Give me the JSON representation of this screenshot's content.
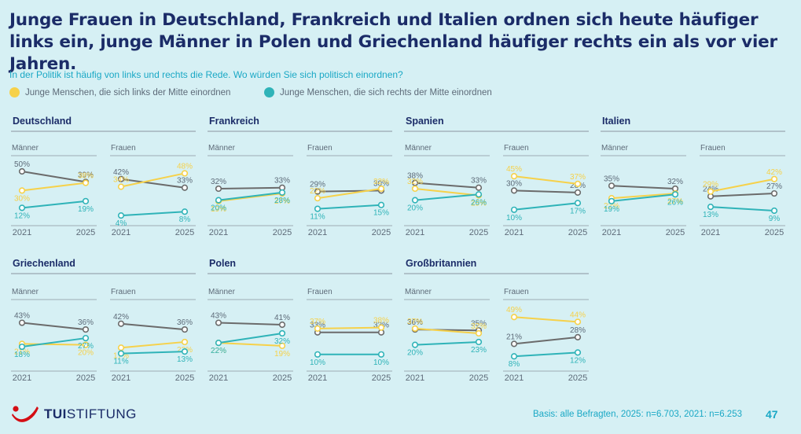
{
  "title": "Junge Frauen in Deutschland, Frankreich und Italien ordnen sich heute häufiger links ein, junge Männer in Polen und Griechenland häufiger rechts ein als vor vier Jahren.",
  "subtitle": "In der Politik ist häufig von links und rechts die Rede. Wo würden Sie sich politisch einordnen?",
  "legend": [
    {
      "label": "Junge Menschen, die sich links der Mitte einordnen",
      "color": "#f6d14a"
    },
    {
      "label": "Junge Menschen, die sich rechts der Mitte einordnen",
      "color": "#2fb3b8"
    }
  ],
  "colors": {
    "left": "#f6d14a",
    "right": "#2fb3b8",
    "grey": "#6b6b6b",
    "axis_text": "#5d6a78"
  },
  "footer": {
    "logo_brand": "TUI",
    "logo_suffix": "STIFTUNG",
    "logo_icon": "tui-smile-logo",
    "footnote": "Basis: alle Befragten, 2025: n=6.703, 2021: n=6.253",
    "page": "47"
  },
  "chart_data": [
    {
      "country": "Deutschland",
      "panels": [
        {
          "label": "Männer",
          "x": [
            "2021",
            "2025"
          ],
          "grey": [
            50,
            39
          ],
          "left": [
            30,
            38
          ],
          "right": [
            12,
            19
          ],
          "grey_labels": [
            "50%",
            "39%"
          ],
          "left_labels": [
            "30%",
            "38%"
          ],
          "right_labels": [
            "12%",
            "19%"
          ]
        },
        {
          "label": "Frauen",
          "x": [
            "2021",
            "2025"
          ],
          "grey": [
            42,
            33
          ],
          "left": [
            34,
            48
          ],
          "right": [
            4,
            8
          ],
          "grey_labels": [
            "42%",
            "33%"
          ],
          "left_labels": [
            "34%",
            "48%"
          ],
          "right_labels": [
            "4%",
            "8%"
          ]
        }
      ]
    },
    {
      "country": "Frankreich",
      "panels": [
        {
          "label": "Männer",
          "x": [
            "2021",
            "2025"
          ],
          "grey": [
            32,
            33
          ],
          "left": [
            19,
            27
          ],
          "right": [
            20,
            28
          ],
          "grey_labels": [
            "32%",
            "33%"
          ],
          "left_labels": [
            "19%",
            "27%"
          ],
          "right_labels": [
            "20%",
            "28%"
          ]
        },
        {
          "label": "Frauen",
          "x": [
            "2021",
            "2025"
          ],
          "grey": [
            29,
            30
          ],
          "left": [
            22,
            32
          ],
          "right": [
            11,
            15
          ],
          "grey_labels": [
            "29%",
            "30%"
          ],
          "left_labels": [
            "22%",
            "32%"
          ],
          "right_labels": [
            "11%",
            "15%"
          ]
        }
      ]
    },
    {
      "country": "Spanien",
      "panels": [
        {
          "label": "Männer",
          "x": [
            "2021",
            "2025"
          ],
          "grey": [
            38,
            33
          ],
          "left": [
            32,
            25
          ],
          "right": [
            20,
            26
          ],
          "grey_labels": [
            "38%",
            "33%"
          ],
          "left_labels": [
            "32%",
            "25%"
          ],
          "right_labels": [
            "20%",
            "26%"
          ]
        },
        {
          "label": "Frauen",
          "x": [
            "2021",
            "2025"
          ],
          "grey": [
            30,
            28
          ],
          "left": [
            45,
            37
          ],
          "right": [
            10,
            17
          ],
          "grey_labels": [
            "30%",
            "28%"
          ],
          "left_labels": [
            "45%",
            "37%"
          ],
          "right_labels": [
            "10%",
            "17%"
          ]
        }
      ]
    },
    {
      "country": "Italien",
      "panels": [
        {
          "label": "Männer",
          "x": [
            "2021",
            "2025"
          ],
          "grey": [
            35,
            32
          ],
          "left": [
            22,
            27
          ],
          "right": [
            19,
            26
          ],
          "grey_labels": [
            "35%",
            "32%"
          ],
          "left_labels": [
            "22%",
            "27%"
          ],
          "right_labels": [
            "19%",
            "26%"
          ]
        },
        {
          "label": "Frauen",
          "x": [
            "2021",
            "2025"
          ],
          "grey": [
            24,
            27
          ],
          "left": [
            29,
            42
          ],
          "right": [
            13,
            9
          ],
          "grey_labels": [
            "24%",
            "27%"
          ],
          "left_labels": [
            "29%",
            "42%"
          ],
          "right_labels": [
            "13%",
            "9%"
          ]
        }
      ]
    },
    {
      "country": "Griechenland",
      "panels": [
        {
          "label": "Männer",
          "x": [
            "2021",
            "2025"
          ],
          "grey": [
            43,
            36
          ],
          "left": [
            21,
            20
          ],
          "right": [
            18,
            27
          ],
          "grey_labels": [
            "43%",
            "36%"
          ],
          "left_labels": [
            "21%",
            "20%"
          ],
          "right_labels": [
            "18%",
            "27%"
          ]
        },
        {
          "label": "Frauen",
          "x": [
            "2021",
            "2025"
          ],
          "grey": [
            42,
            36
          ],
          "left": [
            17,
            23
          ],
          "right": [
            11,
            13
          ],
          "grey_labels": [
            "42%",
            "36%"
          ],
          "left_labels": [
            "17%",
            "23%"
          ],
          "right_labels": [
            "11%",
            "13%"
          ]
        }
      ]
    },
    {
      "country": "Polen",
      "panels": [
        {
          "label": "Männer",
          "x": [
            "2021",
            "2025"
          ],
          "grey": [
            43,
            41
          ],
          "left": [
            22,
            19
          ],
          "right": [
            22,
            32
          ],
          "grey_labels": [
            "43%",
            "41%"
          ],
          "left_labels": [
            "22%",
            "19%"
          ],
          "right_labels": [
            "22%",
            "32%"
          ]
        },
        {
          "label": "Frauen",
          "x": [
            "2021",
            "2025"
          ],
          "grey": [
            33,
            33
          ],
          "left": [
            37,
            38
          ],
          "right": [
            10,
            10
          ],
          "grey_labels": [
            "33%",
            "33%"
          ],
          "left_labels": [
            "37%",
            "38%"
          ],
          "right_labels": [
            "10%",
            "10%"
          ]
        }
      ]
    },
    {
      "country": "Großbritannien",
      "panels": [
        {
          "label": "Männer",
          "x": [
            "2021",
            "2025"
          ],
          "grey": [
            36,
            35
          ],
          "left": [
            37,
            32
          ],
          "right": [
            20,
            23
          ],
          "grey_labels": [
            "36%",
            "35%"
          ],
          "left_labels": [
            "37%",
            "32%"
          ],
          "right_labels": [
            "20%",
            "23%"
          ]
        },
        {
          "label": "Frauen",
          "x": [
            "2021",
            "2025"
          ],
          "grey": [
            21,
            28
          ],
          "left": [
            49,
            44
          ],
          "right": [
            8,
            12
          ],
          "grey_labels": [
            "21%",
            "28%"
          ],
          "left_labels": [
            "49%",
            "44%"
          ],
          "right_labels": [
            "8%",
            "12%"
          ]
        }
      ]
    }
  ]
}
